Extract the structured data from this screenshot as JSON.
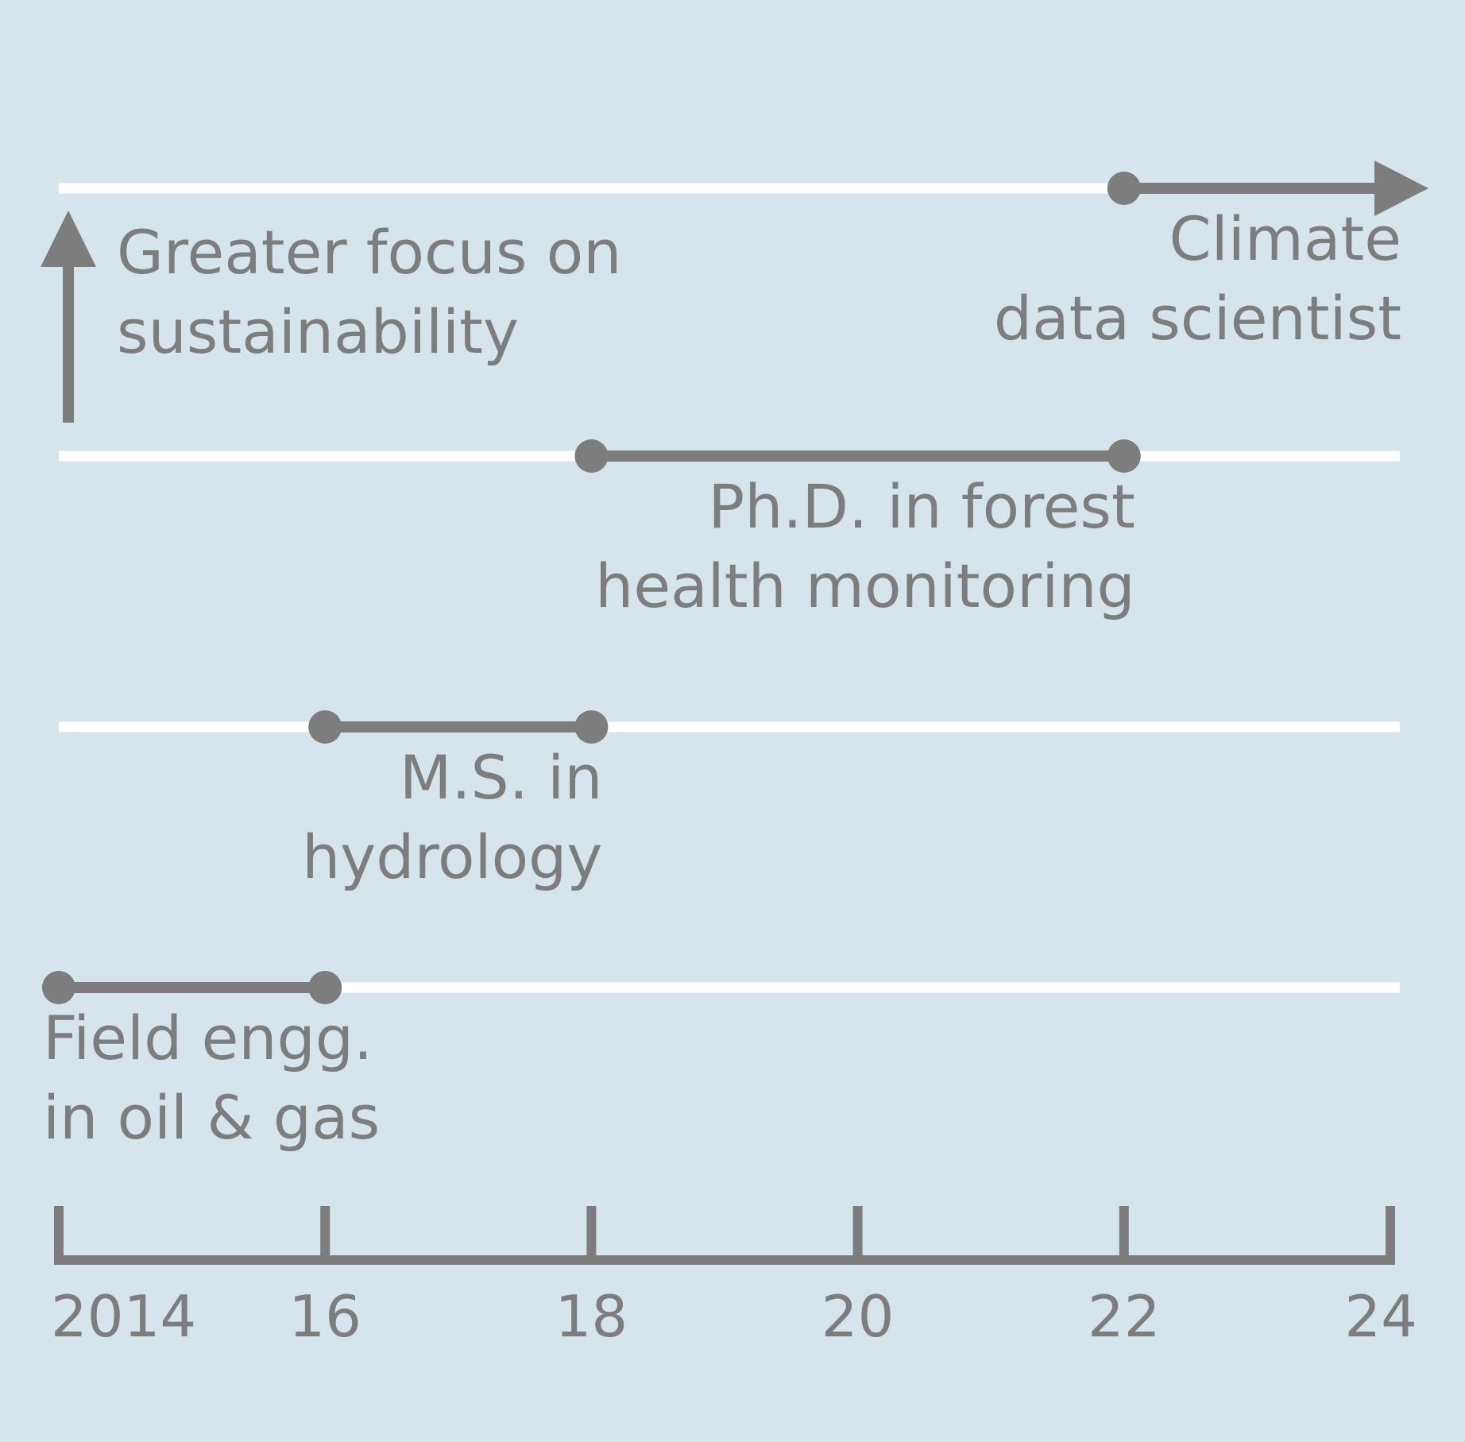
{
  "chart_data": {
    "type": "timeline",
    "xlim": [
      2014,
      24
    ],
    "ticks": [
      {
        "value": 2014,
        "label": "2014"
      },
      {
        "value": 2016,
        "label": "16"
      },
      {
        "value": 2018,
        "label": "18"
      },
      {
        "value": 2020,
        "label": "20"
      },
      {
        "value": 2022,
        "label": "22"
      },
      {
        "value": 2024,
        "label": "24"
      }
    ],
    "stages": [
      {
        "label_lines": [
          "Field engg.",
          "in oil & gas"
        ],
        "start": 2014,
        "end": 2016,
        "ongoing": false
      },
      {
        "label_lines": [
          "M.S. in",
          "hydrology"
        ],
        "start": 2016,
        "end": 2018,
        "ongoing": false
      },
      {
        "label_lines": [
          "Ph.D. in forest",
          "health monitoring"
        ],
        "start": 2018,
        "end": 2022,
        "ongoing": false
      },
      {
        "label_lines": [
          "Climate",
          "data scientist"
        ],
        "start": 2022,
        "end": 2024,
        "ongoing": true
      }
    ],
    "annotation": {
      "label_lines": [
        "Greater focus on",
        "sustainability"
      ],
      "direction": "up"
    },
    "colors": {
      "background": "#d6e5ec",
      "track": "#ffffff",
      "mark": "#7d7d7d"
    }
  }
}
